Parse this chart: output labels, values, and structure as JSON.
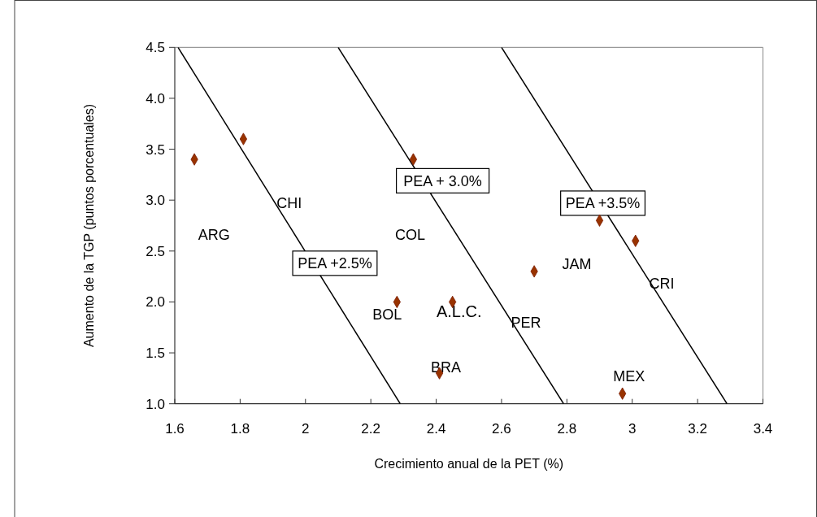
{
  "chart_data": {
    "type": "scatter",
    "xlabel": "Crecimiento anual de la PET (%)",
    "ylabel": "Aumento de la TGP (puntos porcentuales)",
    "xlim": [
      1.6,
      3.4
    ],
    "xticks": [
      1.6,
      1.8,
      2,
      2.2,
      2.4,
      2.6,
      2.8,
      3,
      3.2,
      3.4
    ],
    "ylim": [
      1.0,
      4.5
    ],
    "yticks": [
      {
        "value": 1,
        "label": "1.0"
      },
      1.5,
      {
        "value": 2,
        "label": "2.0"
      },
      2.5,
      {
        "value": 3,
        "label": "3.0"
      },
      3.5,
      {
        "value": 4,
        "label": "4.0"
      },
      4.5
    ],
    "grid": false,
    "marker": "diamond",
    "series": [
      {
        "color": "#993300",
        "x": [
          1.66,
          1.81,
          2.33,
          2.28,
          2.45,
          2.41,
          2.9,
          3.01,
          2.7,
          2.97
        ],
        "values": [
          3.4,
          3.6,
          3.4,
          2.0,
          2.0,
          1.3,
          2.8,
          2.6,
          2.3,
          1.1
        ]
      },
      {
        "type": "line",
        "color": "#000000",
        "line_style": "solid",
        "marker": "none",
        "x": [
          1.61,
          2.29
        ],
        "values": [
          4.5,
          1.0
        ]
      },
      {
        "type": "line",
        "color": "#000000",
        "line_style": "solid",
        "marker": "none",
        "x": [
          2.1,
          2.79
        ],
        "values": [
          4.5,
          1.0
        ]
      },
      {
        "type": "line",
        "color": "#000000",
        "line_style": "solid",
        "marker": "none",
        "x": [
          2.6,
          3.29
        ],
        "values": [
          4.5,
          1.0
        ]
      }
    ],
    "annotations": [
      "ARG",
      "CHI",
      "COL",
      "BOL",
      "A.L.C.",
      "BRA",
      "PER",
      "JAM",
      "CRI",
      "MEX",
      "PEA +2.5%",
      "PEA + 3.0%",
      "PEA +3.5%"
    ]
  }
}
